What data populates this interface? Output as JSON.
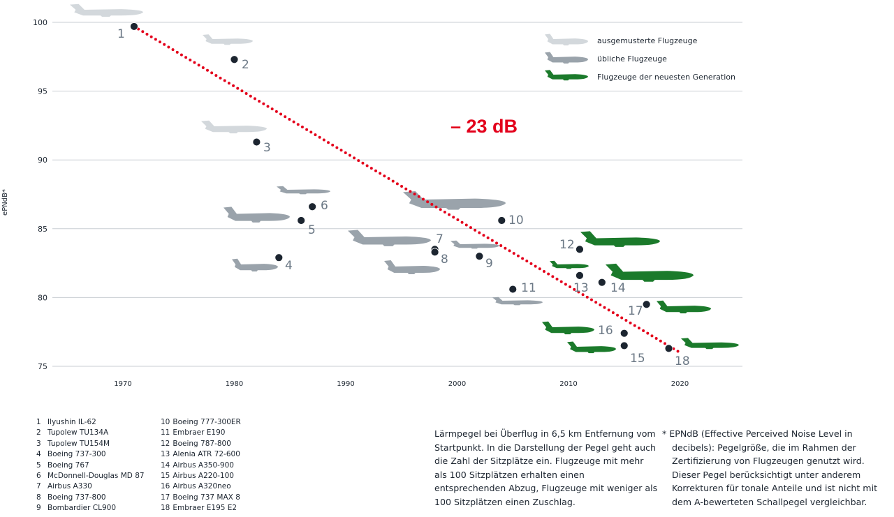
{
  "chart_data": {
    "type": "scatter",
    "ylabel": "ePNdB*",
    "xlabel": "",
    "xlim": [
      1964,
      2025
    ],
    "ylim": [
      75,
      100
    ],
    "xticks": [
      "1970",
      "1980",
      "1990",
      "2000",
      "2010",
      "2020"
    ],
    "yticks": [
      "75",
      "80",
      "85",
      "90",
      "95",
      "100"
    ],
    "grid": "horizontal",
    "legend_placement": "top-right",
    "legend": [
      {
        "key": "retired",
        "label": "ausgemusterte Flugzeuge",
        "color": "#d3d8dc"
      },
      {
        "key": "usual",
        "label": "übliche Flugzeuge",
        "color": "#9aa3ab"
      },
      {
        "key": "newest",
        "label": "Flugzeuge der neuesten Generation",
        "color": "#1b7a2b"
      }
    ],
    "annotation": "– 23 dB",
    "trend": {
      "from": [
        1971,
        99.7
      ],
      "to": [
        2020,
        76.0
      ],
      "color": "#e3001b"
    },
    "points": [
      {
        "id": "1",
        "name": "Ilyushin IL-62",
        "x": 1971,
        "y": 99.7,
        "group": "retired"
      },
      {
        "id": "2",
        "name": "Tupolew TU134A",
        "x": 1980,
        "y": 97.3,
        "group": "retired"
      },
      {
        "id": "3",
        "name": "Tupolew TU154M",
        "x": 1982,
        "y": 91.3,
        "group": "retired"
      },
      {
        "id": "4",
        "name": "Boeing 737-300",
        "x": 1984,
        "y": 82.9,
        "group": "usual"
      },
      {
        "id": "5",
        "name": "Boeing 767",
        "x": 1986,
        "y": 85.6,
        "group": "usual"
      },
      {
        "id": "6",
        "name": "McDonnell-Douglas MD 87",
        "x": 1987,
        "y": 86.6,
        "group": "usual"
      },
      {
        "id": "7",
        "name": "Airbus A330",
        "x": 1998,
        "y": 83.5,
        "group": "usual"
      },
      {
        "id": "8",
        "name": "Boeing 737-800",
        "x": 1998,
        "y": 83.3,
        "group": "usual"
      },
      {
        "id": "9",
        "name": "Bombardier CL900",
        "x": 2002,
        "y": 83.0,
        "group": "usual"
      },
      {
        "id": "10",
        "name": "Boeing 777-300ER",
        "x": 2004,
        "y": 85.6,
        "group": "usual"
      },
      {
        "id": "11",
        "name": "Embraer E190",
        "x": 2005,
        "y": 80.6,
        "group": "usual"
      },
      {
        "id": "12",
        "name": "Boeing 787-800",
        "x": 2011,
        "y": 83.5,
        "group": "newest"
      },
      {
        "id": "13",
        "name": "Alenia ATR 72-600",
        "x": 2011,
        "y": 81.6,
        "group": "newest"
      },
      {
        "id": "14",
        "name": "Airbus A350-900",
        "x": 2013,
        "y": 81.1,
        "group": "newest"
      },
      {
        "id": "15",
        "name": "Airbus A220-100",
        "x": 2015,
        "y": 76.5,
        "group": "newest"
      },
      {
        "id": "16",
        "name": "Airbus A320neo",
        "x": 2015,
        "y": 77.4,
        "group": "newest"
      },
      {
        "id": "17",
        "name": "Boeing 737 MAX 8",
        "x": 2017,
        "y": 79.5,
        "group": "newest"
      },
      {
        "id": "18",
        "name": "Embraer E195 E2",
        "x": 2019,
        "y": 76.3,
        "group": "newest"
      }
    ]
  },
  "notes": {
    "description": "Lärmpegel bei Überflug in 6,5 km Entfernung vom Startpunkt. In die Darstellung der Pegel geht auch die Zahl der Sitzplätze ein. Flugzeuge mit mehr als 100 Sitzplätzen erhalten einen entsprechenden Abzug, Flugzeuge mit weniger als 100 Sitzplätzen einen Zuschlag.",
    "footnote_marker": "* EPNdB (Effective Perceived Noise Level in",
    "footnote_rest": "decibels): Pegelgröße, die im Rahmen der Zertifizierung von Flugzeugen genutzt wird. Dieser Pegel berücksichtigt unter anderem Korrekturen für tonale Anteile und ist nicht mit dem A-bewerteten Schallpegel vergleichbar."
  }
}
